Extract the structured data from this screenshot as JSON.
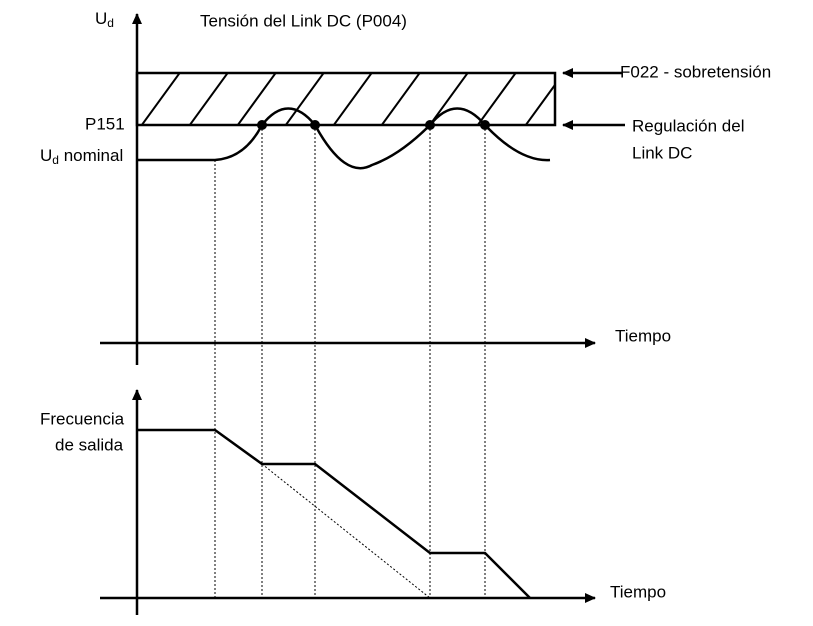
{
  "title": "Tensión del Link DC (P004)",
  "top_axis": {
    "y_label": {
      "main": "U",
      "sub": "d"
    },
    "x_label": "Tiempo"
  },
  "levels": {
    "p151": "P151",
    "nominal": {
      "main": "U",
      "sub": "d",
      "rest": " nominal"
    }
  },
  "annotations": {
    "overvoltage": "F022 - sobretensión",
    "regulation_1": "Regulación del",
    "regulation_2": "Link DC"
  },
  "bottom_axis": {
    "y_label_1": "Frecuencia",
    "y_label_2": "de salida",
    "x_label": "Tiempo"
  }
}
